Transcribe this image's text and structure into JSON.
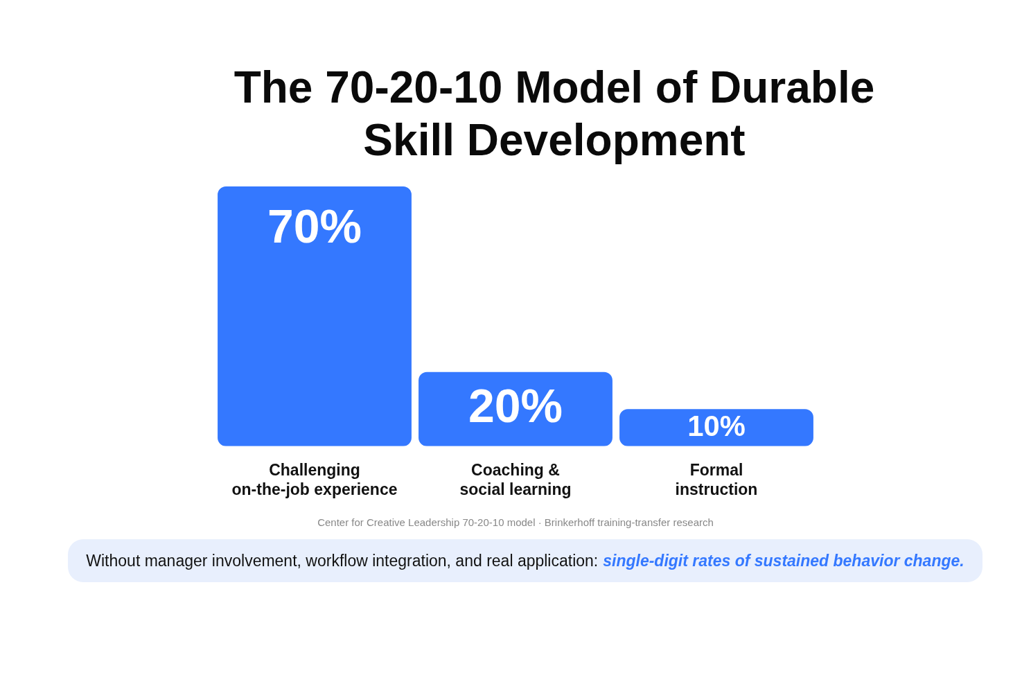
{
  "chart_data": {
    "type": "bar",
    "title": "The 70-20-10 Model of Durable Skill Development",
    "categories": [
      "Challenging on-the-job experience",
      "Coaching & social learning",
      "Formal instruction"
    ],
    "values": [
      70,
      20,
      10
    ],
    "value_labels": [
      "70%",
      "20%",
      "10%"
    ],
    "color": "#3478ff",
    "tick_labels": "x",
    "grid": false,
    "legend": false,
    "annotations": [
      "Center for Creative Leadership 70-20-10 model · Brinkerhoff training-transfer research",
      "Without manager involvement, workflow integration, and real application:",
      "single-digit rates of sustained behavior change."
    ]
  }
}
